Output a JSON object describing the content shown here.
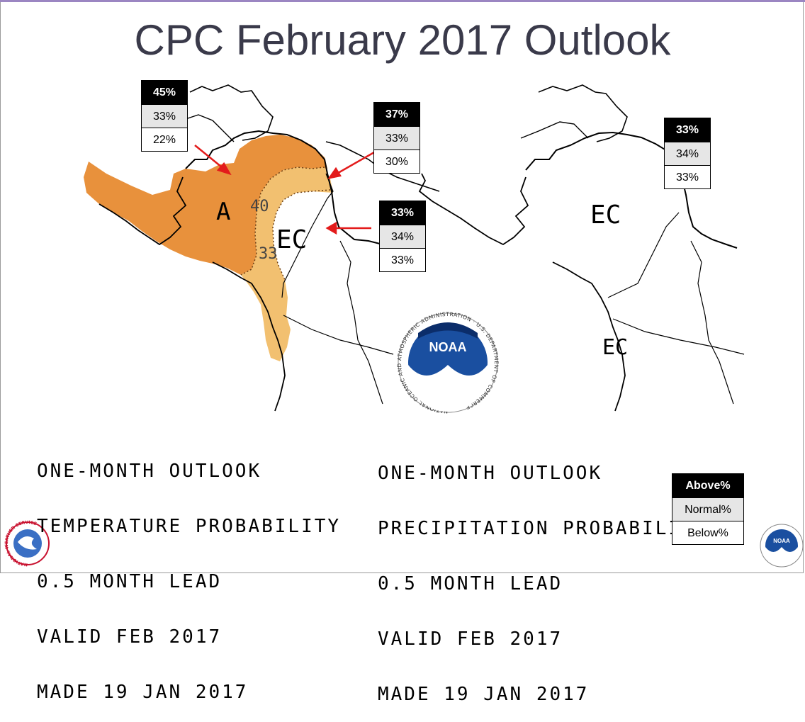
{
  "slide": {
    "title": "CPC February 2017 Outlook",
    "accent_color": "#9b86c2"
  },
  "temperature_map": {
    "region_labels": {
      "above": "A",
      "ec": "EC"
    },
    "contour_labels": [
      "40",
      "33"
    ],
    "caption": [
      "ONE-MONTH OUTLOOK",
      "TEMPERATURE PROBABILITY",
      "0.5 MONTH LEAD",
      "VALID FEB 2017",
      "MADE 19 JAN 2017"
    ],
    "colors": {
      "above_40": "#e8913c",
      "above_33": "#f2c070"
    },
    "boxes": [
      {
        "above": "45%",
        "normal": "33%",
        "below": "22%"
      },
      {
        "above": "37%",
        "normal": "33%",
        "below": "30%"
      },
      {
        "above": "33%",
        "normal": "34%",
        "below": "33%"
      }
    ]
  },
  "precipitation_map": {
    "region_labels": {
      "ec": "EC",
      "ec_small": "EC"
    },
    "caption": [
      "ONE-MONTH OUTLOOK",
      "PRECIPITATION PROBABILITY",
      "0.5 MONTH LEAD",
      "VALID FEB 2017",
      "MADE 19 JAN 2017"
    ],
    "box": {
      "above": "33%",
      "normal": "34%",
      "below": "33%"
    }
  },
  "legend": {
    "above": "Above%",
    "normal": "Normal%",
    "below": "Below%"
  },
  "logos": {
    "noaa_text": "NOAA",
    "noaa_ring": "NATIONAL OCEANIC AND ATMOSPHERIC ADMINISTRATION · U.S. DEPARTMENT OF COMMERCE",
    "nws_ring": "NATIONAL WEATHER SERVICE"
  }
}
